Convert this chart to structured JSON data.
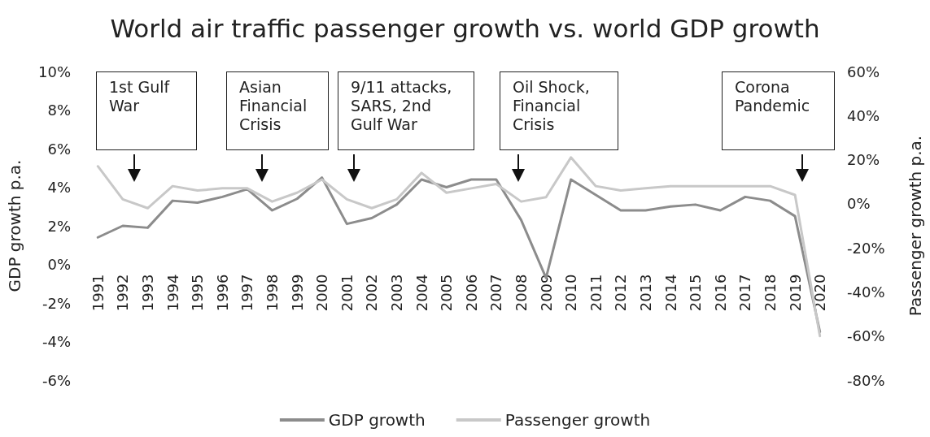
{
  "chart_data": {
    "type": "line",
    "title": "World air traffic passenger growth vs. world GDP growth",
    "ylabel": "GDP growth p.a.",
    "y2label": "Passenger growth p.a.",
    "categories": [
      "1991",
      "1992",
      "1993",
      "1994",
      "1995",
      "1996",
      "1997",
      "1998",
      "1999",
      "2000",
      "2001",
      "2002",
      "2003",
      "2004",
      "2005",
      "2006",
      "2007",
      "2008",
      "2009",
      "2010",
      "2011",
      "2012",
      "2013",
      "2014",
      "2015",
      "2016",
      "2017",
      "2018",
      "2019",
      "2020"
    ],
    "series": [
      {
        "name": "GDP growth",
        "color": "#8c8c8c",
        "values": [
          1.4,
          2.0,
          1.9,
          3.3,
          3.2,
          3.5,
          3.9,
          2.8,
          3.4,
          4.5,
          2.1,
          2.4,
          3.1,
          4.4,
          4.0,
          4.4,
          4.4,
          2.3,
          -0.7,
          4.4,
          3.6,
          2.8,
          2.8,
          3.0,
          3.1,
          2.8,
          3.5,
          3.3,
          2.5,
          -3.5
        ]
      },
      {
        "name": "Passenger growth",
        "color": "#c8c8c8",
        "axis": "y2",
        "values": [
          17,
          2,
          -2,
          8,
          6,
          7,
          7,
          1,
          5,
          11,
          2,
          -2,
          2,
          14,
          5,
          7,
          9,
          1,
          3,
          21,
          8,
          6,
          7,
          8,
          8,
          8,
          8,
          8,
          4,
          -60
        ]
      }
    ],
    "ylim": [
      -6,
      10
    ],
    "yticks": [
      {
        "value": -6,
        "label": "-6%"
      },
      {
        "value": -4,
        "label": "-4%"
      },
      {
        "value": -2,
        "label": "-2%"
      },
      {
        "value": 0,
        "label": "0%"
      },
      {
        "value": 2,
        "label": "2%"
      },
      {
        "value": 4,
        "label": "4%"
      },
      {
        "value": 6,
        "label": "6%"
      },
      {
        "value": 8,
        "label": "8%"
      },
      {
        "value": 10,
        "label": "10%"
      }
    ],
    "y2lim": [
      -80,
      60
    ],
    "y2ticks": [
      {
        "value": -80,
        "label": "-80%"
      },
      {
        "value": -60,
        "label": "-60%"
      },
      {
        "value": -40,
        "label": "-40%"
      },
      {
        "value": -20,
        "label": "-20%"
      },
      {
        "value": 0,
        "label": "0%"
      },
      {
        "value": 20,
        "label": "20%"
      },
      {
        "value": 40,
        "label": "40%"
      },
      {
        "value": 60,
        "label": "60%"
      }
    ],
    "annotations": [
      "1st Gulf War",
      "Asian Financial Crisis",
      "9/11 attacks, SARS, 2nd Gulf War",
      "Oil Shock, Financial Crisis",
      "Corona Pandemic"
    ],
    "grid": false,
    "legend": "bottom",
    "marker": "none",
    "line_style": "solid"
  }
}
